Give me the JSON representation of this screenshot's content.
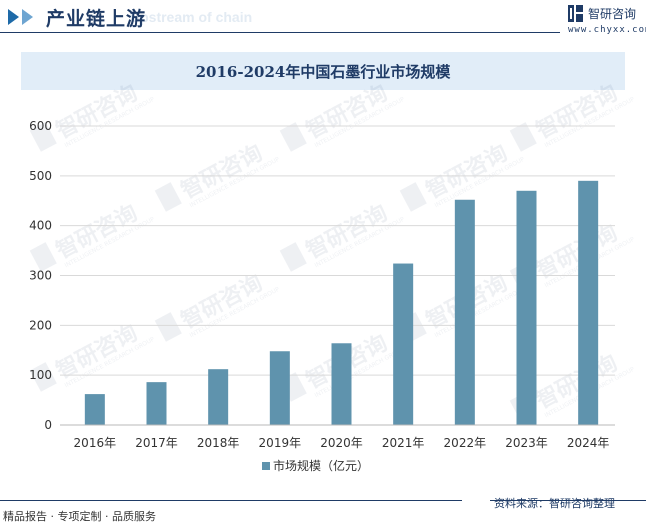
{
  "header": {
    "title": "产业链上游",
    "ghost_text": "Upstream of chain",
    "logo_name": "智研咨询",
    "logo_url": "www.chyxx.com"
  },
  "watermark": {
    "cn": "智研咨询",
    "en": "INTELLIGENCE RESEARCH GROUP"
  },
  "footer": {
    "left": "精品报告 · 专项定制 · 品质服务",
    "right": "资料来源：智研咨询整理"
  },
  "colors": {
    "bar": "#5f93ad",
    "axis": "#b9b9b9",
    "grid": "#d9d9d9",
    "title_band": "#e1edf8",
    "title_text": "#1f3b66"
  },
  "chart_data": {
    "type": "bar",
    "title": "2016-2024年中国石墨行业市场规模",
    "categories": [
      "2016年",
      "2017年",
      "2018年",
      "2019年",
      "2020年",
      "2021年",
      "2022年",
      "2023年",
      "2024年"
    ],
    "series": [
      {
        "name": "市场规模（亿元）",
        "values": [
          62,
          86,
          112,
          148,
          164,
          324,
          452,
          470,
          490
        ]
      }
    ],
    "yticks": [
      0,
      100,
      200,
      300,
      400,
      500,
      600
    ],
    "ylim": [
      0,
      600
    ],
    "grid": true,
    "legend_position": "bottom-center",
    "xlabel": "",
    "ylabel": ""
  }
}
